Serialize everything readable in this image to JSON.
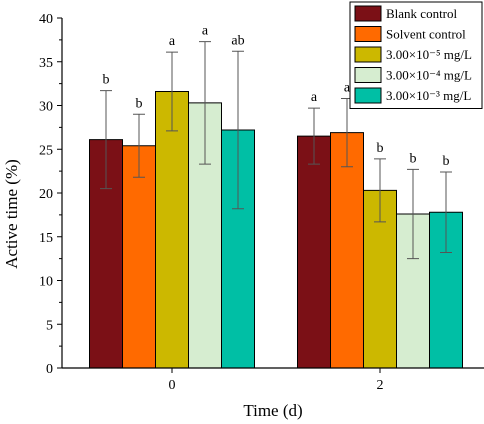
{
  "chart_data": {
    "type": "bar",
    "xlabel": "Time (d)",
    "ylabel": "Active time (%)",
    "ylim": [
      0,
      40
    ],
    "yticks": [
      0,
      5,
      10,
      15,
      20,
      25,
      30,
      35,
      40
    ],
    "categories": [
      "0",
      "2"
    ],
    "legend_position": "top-right",
    "grid": false,
    "series": [
      {
        "name": "Blank control",
        "color": "#7b1016",
        "values": [
          26.1,
          26.5
        ],
        "errors": [
          5.6,
          3.2
        ],
        "labels": [
          "b",
          "a"
        ]
      },
      {
        "name": "Solvent control",
        "color": "#ff6a00",
        "values": [
          25.4,
          26.9
        ],
        "errors": [
          3.6,
          3.9
        ],
        "labels": [
          "b",
          "a"
        ]
      },
      {
        "name": "3.00×10⁻⁵ mg/L",
        "color": "#ccb800",
        "values": [
          31.6,
          20.3
        ],
        "errors": [
          4.5,
          3.6
        ],
        "labels": [
          "a",
          "b"
        ]
      },
      {
        "name": "3.00×10⁻⁴ mg/L",
        "color": "#d6edd0",
        "values": [
          30.3,
          17.6
        ],
        "errors": [
          7.0,
          5.1
        ],
        "labels": [
          "a",
          "b"
        ]
      },
      {
        "name": "3.00×10⁻³ mg/L",
        "color": "#00bfa5",
        "values": [
          27.2,
          17.8
        ],
        "errors": [
          9.0,
          4.6
        ],
        "labels": [
          "ab",
          "b"
        ]
      }
    ]
  }
}
